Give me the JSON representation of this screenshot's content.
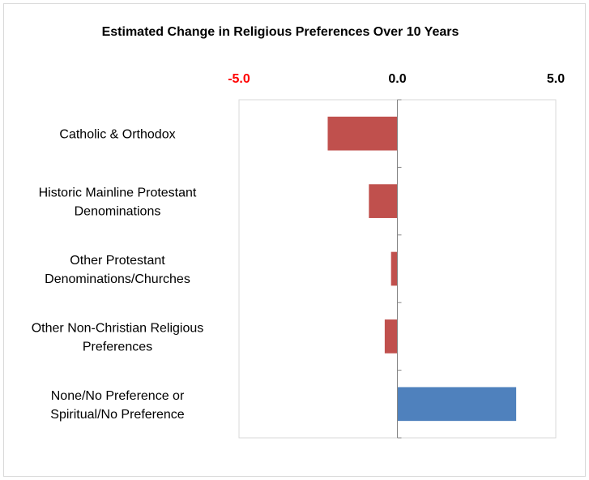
{
  "chart_data": {
    "type": "bar",
    "orientation": "horizontal",
    "title": "Estimated Change in Religious Preferences Over 10 Years",
    "xlim": [
      -5,
      5
    ],
    "xticks": [
      {
        "value": -5,
        "label": "-5.0",
        "color": "#ff0000"
      },
      {
        "value": 0,
        "label": "0.0",
        "color": "#000000"
      },
      {
        "value": 5,
        "label": "5.0",
        "color": "#000000"
      }
    ],
    "categories": [
      [
        "Catholic & Orthodox"
      ],
      [
        "Historic Mainline Protestant",
        "Denominations"
      ],
      [
        "Other Protestant",
        "Denominations/Churches"
      ],
      [
        "Other Non-Christian Religious",
        "Preferences"
      ],
      [
        "None/No Preference or",
        "Spiritual/No Preference"
      ]
    ],
    "values": [
      -2.2,
      -0.9,
      -0.2,
      -0.4,
      3.75
    ],
    "colors": {
      "negative": "#c0504d",
      "positive": "#4f81bd",
      "plot_border": "#d9d9d9",
      "axis": "#868686",
      "frame": "#d9d9d9"
    },
    "grid": false,
    "legend": "none"
  }
}
